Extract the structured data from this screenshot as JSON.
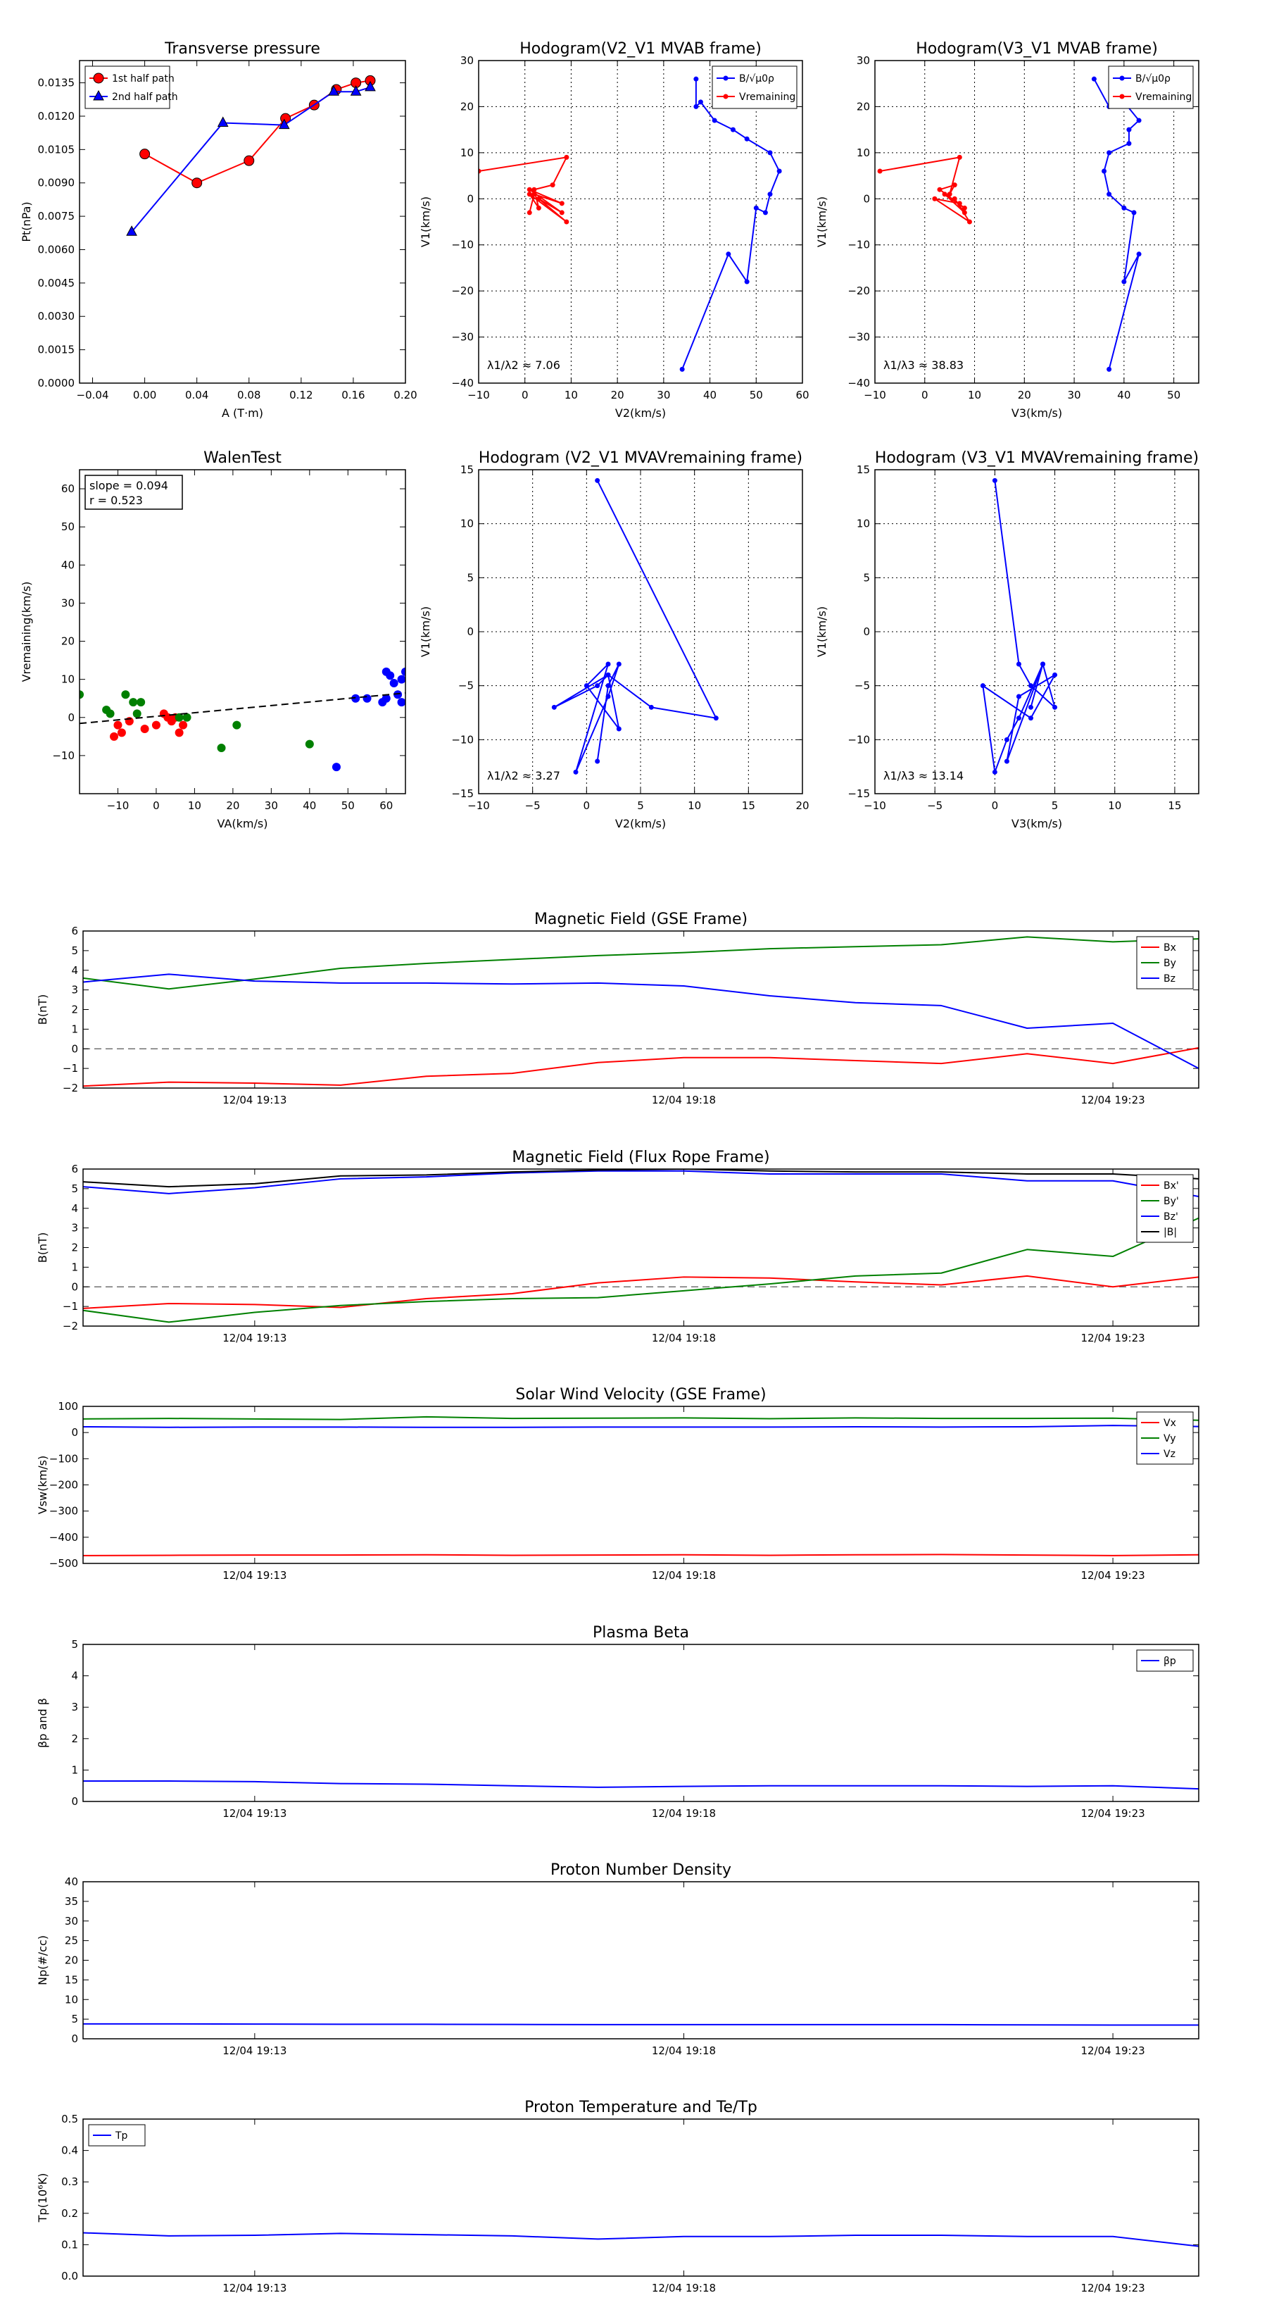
{
  "figure": {
    "time_ticks": [
      "12/04 19:13",
      "12/04 19:18",
      "12/04 19:23"
    ]
  },
  "chart_data": [
    {
      "id": "p1",
      "type": "scatter",
      "title": "Transverse pressure",
      "xlabel": "A (T·m)",
      "ylabel": "Pt(nPa)",
      "xlim": [
        -0.05,
        0.2
      ],
      "ylim": [
        0,
        0.0145
      ],
      "xticks": [
        -0.04,
        0.0,
        0.04,
        0.08,
        0.12,
        0.16,
        0.2
      ],
      "xtick_labels": [
        "−0.04",
        "0.00",
        "0.04",
        "0.08",
        "0.12",
        "0.16",
        "0.20"
      ],
      "yticks": [
        0,
        0.0015,
        0.003,
        0.0045,
        0.006,
        0.0075,
        0.009,
        0.0105,
        0.012,
        0.0135
      ],
      "ytick_labels": [
        "0.0000",
        "0.0015",
        "0.0030",
        "0.0045",
        "0.0060",
        "0.0075",
        "0.0090",
        "0.0105",
        "0.0120",
        "0.0135"
      ],
      "grid": false,
      "legend_position": "top-left",
      "series": [
        {
          "name": "1st half path",
          "color": "#ff0000",
          "marker": "circle",
          "x": [
            0.0,
            0.04,
            0.08,
            0.108,
            0.13,
            0.147,
            0.162,
            0.173
          ],
          "y": [
            0.0103,
            0.009,
            0.01,
            0.0119,
            0.0125,
            0.0132,
            0.0135,
            0.0136
          ]
        },
        {
          "name": "2nd half path",
          "color": "#0000ff",
          "marker": "triangle",
          "x": [
            -0.01,
            0.06,
            0.107,
            0.145,
            0.162,
            0.173
          ],
          "y": [
            0.0068,
            0.0117,
            0.0116,
            0.0131,
            0.0131,
            0.0133
          ]
        }
      ]
    },
    {
      "id": "p2",
      "type": "line",
      "title": "Hodogram(V2_V1 MVAB frame)",
      "xlabel": "V2(km/s)",
      "ylabel": "V1(km/s)",
      "xlim": [
        -10,
        60
      ],
      "ylim": [
        -40,
        30
      ],
      "xticks": [
        -10,
        0,
        10,
        20,
        30,
        40,
        50,
        60
      ],
      "yticks": [
        -40,
        -30,
        -20,
        -10,
        0,
        10,
        20,
        30
      ],
      "grid": true,
      "legend_position": "top-right",
      "annotation": "λ1/λ2 ≈ 7.06",
      "series": [
        {
          "name": "B/√μ0ρ",
          "color": "#0000ff",
          "x": [
            34,
            44,
            48,
            50,
            52,
            53,
            55,
            53,
            48,
            45,
            41,
            38,
            37,
            37
          ],
          "y": [
            -37,
            -12,
            -18,
            -2,
            -3,
            1,
            6,
            10,
            13,
            15,
            17,
            21,
            20,
            26
          ]
        },
        {
          "name": "Vremaining",
          "color": "#ff0000",
          "x": [
            -10,
            9,
            6,
            2,
            3,
            1,
            9,
            3,
            8,
            1,
            8,
            2,
            1
          ],
          "y": [
            6,
            9,
            3,
            2,
            -2,
            1,
            -5,
            0,
            -3,
            2,
            -1,
            1,
            -3
          ]
        }
      ]
    },
    {
      "id": "p3",
      "type": "line",
      "title": "Hodogram(V3_V1 MVAB frame)",
      "xlabel": "V3(km/s)",
      "ylabel": "V1(km/s)",
      "xlim": [
        -10,
        55
      ],
      "ylim": [
        -40,
        30
      ],
      "xticks": [
        -10,
        0,
        10,
        20,
        30,
        40,
        50
      ],
      "yticks": [
        -40,
        -30,
        -20,
        -10,
        0,
        10,
        20,
        30
      ],
      "grid": true,
      "legend_position": "top-right",
      "annotation": "λ1/λ3 ≈ 38.83",
      "series": [
        {
          "name": "B/√μ0ρ",
          "color": "#0000ff",
          "x": [
            37,
            43,
            40,
            42,
            40,
            37,
            36,
            37,
            41,
            41,
            43,
            40,
            37,
            34
          ],
          "y": [
            -37,
            -12,
            -18,
            -3,
            -2,
            1,
            6,
            10,
            12,
            15,
            17,
            21,
            20,
            26
          ]
        },
        {
          "name": "Vremaining",
          "color": "#ff0000",
          "x": [
            -9,
            7,
            5,
            6,
            3,
            8,
            4,
            8,
            6,
            9,
            2,
            7
          ],
          "y": [
            6,
            9,
            1,
            3,
            2,
            -2,
            1,
            -3,
            0,
            -5,
            0,
            -1
          ]
        }
      ]
    },
    {
      "id": "p4",
      "type": "scatter",
      "title": "WalenTest",
      "xlabel": "VA(km/s)",
      "ylabel": "Vremaining(km/s)",
      "xlim": [
        -20,
        65
      ],
      "ylim": [
        -20,
        65
      ],
      "xticks": [
        -10,
        0,
        10,
        20,
        30,
        40,
        50,
        60
      ],
      "yticks": [
        -10,
        0,
        10,
        20,
        30,
        40,
        50,
        60
      ],
      "grid": false,
      "fit_line": {
        "slope": 0.094,
        "intercept": 0.3
      },
      "stats_box": [
        "slope = 0.094",
        "r = 0.523"
      ],
      "series": [
        {
          "name": "",
          "color": "#ff0000",
          "x": [
            -11,
            -9,
            -10,
            -7,
            -3,
            0,
            2,
            4,
            5,
            6,
            7,
            3
          ],
          "y": [
            -5,
            -4,
            -2,
            -1,
            -3,
            -2,
            1,
            -1,
            0,
            -4,
            -2,
            0
          ]
        },
        {
          "name": "",
          "color": "#008000",
          "x": [
            -20,
            -13,
            -12,
            -8,
            -6,
            -4,
            -5,
            6,
            8,
            17,
            21,
            40
          ],
          "y": [
            6,
            2,
            1,
            6,
            4,
            4,
            1,
            0,
            0,
            -8,
            -2,
            -7
          ]
        },
        {
          "name": "",
          "color": "#0000ff",
          "x": [
            47,
            52,
            55,
            59,
            60,
            61,
            62,
            63,
            64,
            65,
            60,
            64
          ],
          "y": [
            -13,
            5,
            5,
            4,
            12,
            11,
            9,
            6,
            10,
            12,
            5,
            4
          ]
        }
      ]
    },
    {
      "id": "p5",
      "type": "line",
      "title": "Hodogram (V2_V1 MVAVremaining frame)",
      "xlabel": "V2(km/s)",
      "ylabel": "V1(km/s)",
      "xlim": [
        -10,
        20
      ],
      "ylim": [
        -15,
        15
      ],
      "xticks": [
        -10,
        -5,
        0,
        5,
        10,
        15,
        20
      ],
      "yticks": [
        -15,
        -10,
        -5,
        0,
        5,
        10,
        15
      ],
      "grid": true,
      "annotation": "λ1/λ2 ≈ 3.27",
      "series": [
        {
          "name": "",
          "color": "#0000ff",
          "x": [
            1,
            12,
            6,
            2,
            1,
            -3,
            2,
            3,
            0,
            2,
            -1,
            2,
            3,
            2,
            1
          ],
          "y": [
            14,
            -8,
            -7,
            -4,
            -5,
            -7,
            -4,
            -9,
            -5,
            -3,
            -13,
            -6,
            -3,
            -5,
            -12
          ]
        }
      ]
    },
    {
      "id": "p6",
      "type": "line",
      "title": "Hodogram (V3_V1 MVAVremaining frame)",
      "xlabel": "V3(km/s)",
      "ylabel": "V1(km/s)",
      "xlim": [
        -10,
        17
      ],
      "ylim": [
        -15,
        15
      ],
      "xticks": [
        -10,
        -5,
        0,
        5,
        10,
        15
      ],
      "yticks": [
        -15,
        -10,
        -5,
        0,
        5,
        10,
        15
      ],
      "grid": true,
      "annotation": "λ1/λ3 ≈ 13.14",
      "series": [
        {
          "name": "",
          "color": "#0000ff",
          "x": [
            0,
            2,
            3,
            5,
            4,
            2,
            1,
            0,
            -1,
            3,
            5,
            2,
            1,
            4,
            3
          ],
          "y": [
            14,
            -3,
            -5,
            -7,
            -3,
            -8,
            -10,
            -13,
            -5,
            -8,
            -4,
            -6,
            -12,
            -3,
            -7
          ]
        }
      ]
    },
    {
      "id": "t1",
      "type": "line",
      "title": "Magnetic Field (GSE Frame)",
      "ylabel": "B(nT)",
      "ylim": [
        -2,
        6
      ],
      "yticks": [
        -2,
        -1,
        0,
        1,
        2,
        3,
        4,
        5,
        6
      ],
      "tick_positions": [
        2,
        7,
        12
      ],
      "x": [
        0,
        1,
        2,
        3,
        4,
        5,
        6,
        7,
        8,
        9,
        10,
        11,
        12,
        13
      ],
      "dashed_zero": true,
      "legend_position": "top-right",
      "series": [
        {
          "name": "Bx",
          "color": "#ff0000",
          "values": [
            -1.9,
            -1.7,
            -1.75,
            -1.85,
            -1.4,
            -1.25,
            -0.7,
            -0.45,
            -0.45,
            -0.6,
            -0.75,
            -0.25,
            -0.75,
            0.05
          ]
        },
        {
          "name": "By",
          "color": "#008000",
          "values": [
            3.6,
            3.05,
            3.55,
            4.1,
            4.35,
            4.55,
            4.75,
            4.9,
            5.1,
            5.2,
            5.3,
            5.7,
            5.45,
            5.6
          ]
        },
        {
          "name": "Bz",
          "color": "#0000ff",
          "values": [
            3.4,
            3.8,
            3.45,
            3.35,
            3.35,
            3.3,
            3.35,
            3.2,
            2.7,
            2.35,
            2.2,
            1.05,
            1.3,
            -1.0
          ]
        }
      ]
    },
    {
      "id": "t2",
      "type": "line",
      "title": "Magnetic Field (Flux Rope Frame)",
      "ylabel": "B(nT)",
      "ylim": [
        -2,
        6
      ],
      "yticks": [
        -2,
        -1,
        0,
        1,
        2,
        3,
        4,
        5,
        6
      ],
      "tick_positions": [
        2,
        7,
        12
      ],
      "x": [
        0,
        1,
        2,
        3,
        4,
        5,
        6,
        7,
        8,
        9,
        10,
        11,
        12,
        13
      ],
      "dashed_zero": true,
      "legend_position": "top-right",
      "series": [
        {
          "name": "Bx'",
          "color": "#ff0000",
          "values": [
            -1.1,
            -0.85,
            -0.9,
            -1.05,
            -0.6,
            -0.35,
            0.2,
            0.5,
            0.45,
            0.25,
            0.1,
            0.55,
            0.0,
            0.5
          ]
        },
        {
          "name": "By'",
          "color": "#008000",
          "values": [
            -1.2,
            -1.8,
            -1.3,
            -0.95,
            -0.75,
            -0.6,
            -0.55,
            -0.2,
            0.15,
            0.55,
            0.7,
            1.9,
            1.55,
            3.5
          ]
        },
        {
          "name": "Bz'",
          "color": "#0000ff",
          "values": [
            5.1,
            4.75,
            5.05,
            5.5,
            5.6,
            5.8,
            5.9,
            5.9,
            5.75,
            5.75,
            5.75,
            5.4,
            5.4,
            4.6
          ]
        },
        {
          "name": "|B|",
          "color": "#000000",
          "values": [
            5.35,
            5.1,
            5.25,
            5.65,
            5.7,
            5.85,
            5.95,
            6.0,
            5.9,
            5.85,
            5.85,
            5.75,
            5.75,
            5.5
          ]
        }
      ]
    },
    {
      "id": "t3",
      "type": "line",
      "title": "Solar Wind Velocity (GSE Frame)",
      "ylabel": "Vsw(km/s)",
      "ylim": [
        -500,
        100
      ],
      "yticks": [
        -500,
        -400,
        -300,
        -200,
        -100,
        0,
        100
      ],
      "ytick_labels": [
        "−500",
        "−400",
        "−300",
        "−200",
        "−100",
        "0",
        "100"
      ],
      "tick_positions": [
        2,
        7,
        12
      ],
      "x": [
        0,
        1,
        2,
        3,
        4,
        5,
        6,
        7,
        8,
        9,
        10,
        11,
        12,
        13
      ],
      "legend_position": "top-right",
      "series": [
        {
          "name": "Vx",
          "color": "#ff0000",
          "values": [
            -470,
            -469,
            -468,
            -468,
            -467,
            -469,
            -468,
            -467,
            -469,
            -467,
            -466,
            -468,
            -470,
            -467
          ]
        },
        {
          "name": "Vy",
          "color": "#008000",
          "values": [
            52,
            54,
            52,
            50,
            60,
            54,
            55,
            56,
            53,
            56,
            54,
            54,
            55,
            47
          ]
        },
        {
          "name": "Vz",
          "color": "#0000ff",
          "values": [
            22,
            20,
            21,
            21,
            20,
            20,
            21,
            21,
            21,
            22,
            21,
            22,
            27,
            23
          ]
        }
      ]
    },
    {
      "id": "t4",
      "type": "line",
      "title": "Plasma Beta",
      "ylabel": "βp and β",
      "ylim": [
        0,
        5
      ],
      "yticks": [
        0,
        1,
        2,
        3,
        4,
        5
      ],
      "tick_positions": [
        2,
        7,
        12
      ],
      "x": [
        0,
        1,
        2,
        3,
        4,
        5,
        6,
        7,
        8,
        9,
        10,
        11,
        12,
        13
      ],
      "legend_position": "top-right",
      "series": [
        {
          "name": "βp",
          "color": "#0000ff",
          "values": [
            0.65,
            0.65,
            0.63,
            0.57,
            0.55,
            0.5,
            0.45,
            0.48,
            0.5,
            0.5,
            0.5,
            0.48,
            0.5,
            0.4
          ]
        }
      ]
    },
    {
      "id": "t5",
      "type": "line",
      "title": "Proton Number Density",
      "ylabel": "Np(#/cc)",
      "ylim": [
        0,
        40
      ],
      "yticks": [
        0,
        5,
        10,
        15,
        20,
        25,
        30,
        35,
        40
      ],
      "tick_positions": [
        2,
        7,
        12
      ],
      "x": [
        0,
        1,
        2,
        3,
        4,
        5,
        6,
        7,
        8,
        9,
        10,
        11,
        12,
        13
      ],
      "series": [
        {
          "name": "",
          "color": "#0000ff",
          "values": [
            3.8,
            3.8,
            3.75,
            3.7,
            3.7,
            3.65,
            3.6,
            3.6,
            3.6,
            3.6,
            3.6,
            3.55,
            3.5,
            3.5
          ]
        }
      ]
    },
    {
      "id": "t6",
      "type": "line",
      "title": "Proton Temperature and Te/Tp",
      "ylabel": "Tp(10⁶K)",
      "ylim": [
        0,
        0.5
      ],
      "yticks": [
        0,
        0.1,
        0.2,
        0.3,
        0.4,
        0.5
      ],
      "ytick_labels": [
        "0.0",
        "0.1",
        "0.2",
        "0.3",
        "0.4",
        "0.5"
      ],
      "tick_positions": [
        2,
        7,
        12
      ],
      "x": [
        0,
        1,
        2,
        3,
        4,
        5,
        6,
        7,
        8,
        9,
        10,
        11,
        12,
        13
      ],
      "legend_position": "top-left",
      "series": [
        {
          "name": "Tp",
          "color": "#0000ff",
          "values": [
            0.138,
            0.128,
            0.13,
            0.136,
            0.132,
            0.128,
            0.118,
            0.126,
            0.126,
            0.13,
            0.13,
            0.126,
            0.126,
            0.095
          ]
        }
      ]
    }
  ]
}
